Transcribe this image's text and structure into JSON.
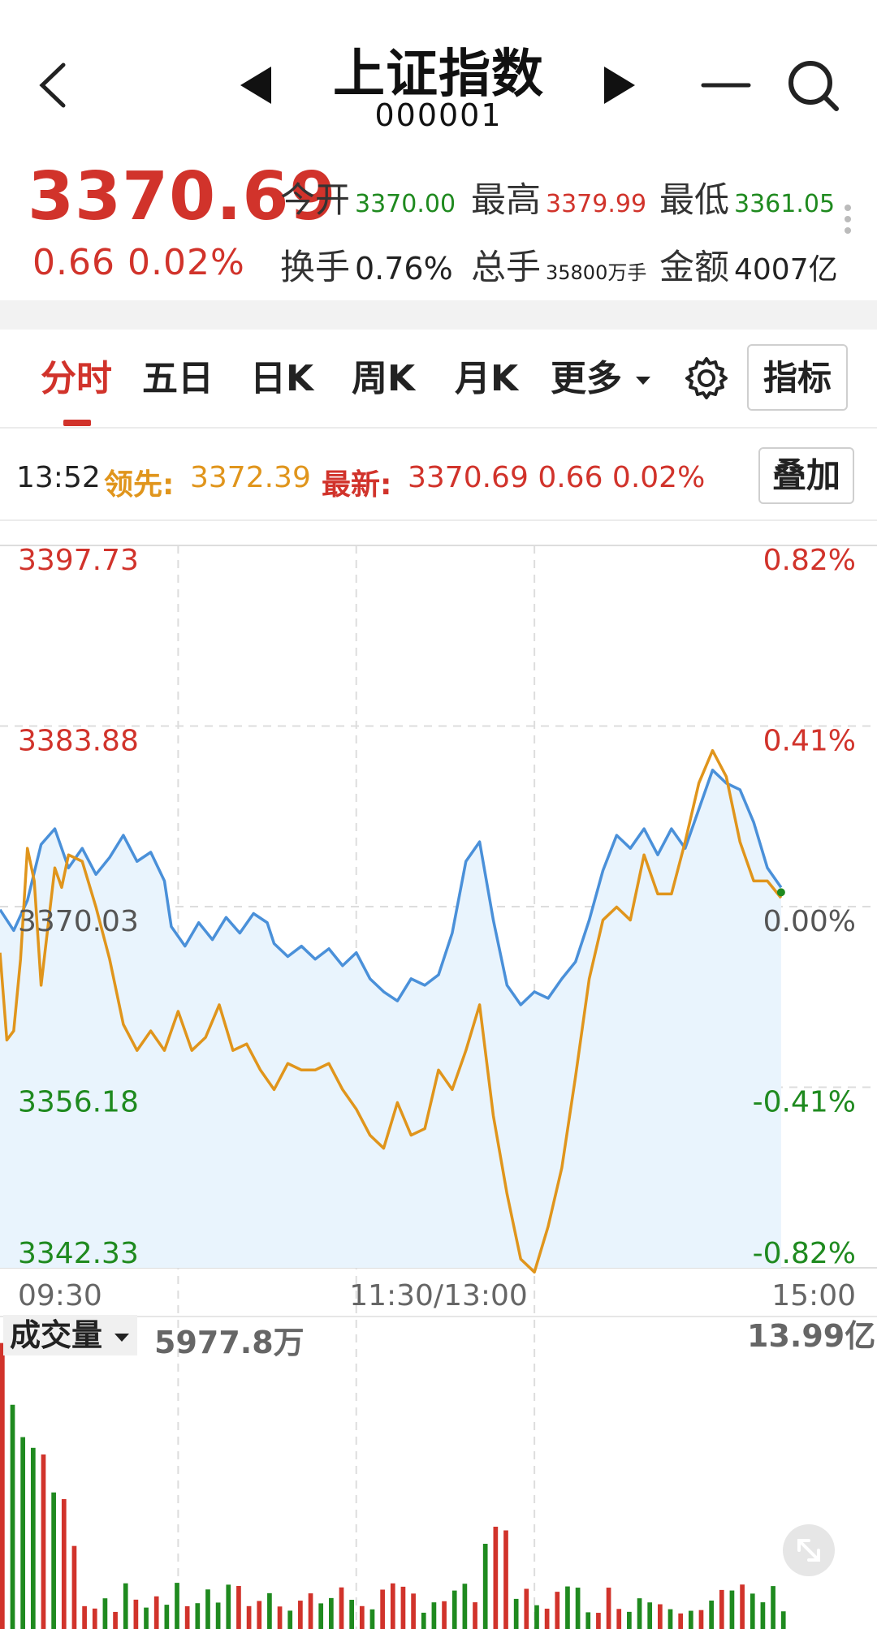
{
  "header": {
    "title": "上证指数",
    "code": "000001"
  },
  "quote": {
    "price": "3370.69",
    "change": "0.66",
    "change_pct": "0.02%",
    "stats": [
      {
        "label": "今开",
        "value": "3370.00",
        "color": "#1f8a1f"
      },
      {
        "label": "最高",
        "value": "3379.99",
        "color": "#d1332b"
      },
      {
        "label": "最低",
        "value": "3361.05",
        "color": "#1f8a1f"
      },
      {
        "label": "换手",
        "value": "0.76%",
        "color": "#222222"
      },
      {
        "label": "总手",
        "value": "35800万手",
        "color": "#222222"
      },
      {
        "label": "金额",
        "value": "4007亿",
        "color": "#222222"
      }
    ]
  },
  "tabs": [
    "分时",
    "五日",
    "日K",
    "周K",
    "月K",
    "更多"
  ],
  "active_tab": "分时",
  "indicator_button": "指标",
  "info": {
    "time": "13:52",
    "lead_label": "领先:",
    "lead_value": "3372.39",
    "last_label": "最新:",
    "last_value": "3370.69 0.66 0.02%",
    "overlay_button": "叠加"
  },
  "colors": {
    "up": "#d1332b",
    "down": "#1f8a1f",
    "price_line": "#4a90d9",
    "lead_line": "#e0951c",
    "area": "#e9f4fd"
  },
  "chart_data": {
    "type": "line",
    "ylim": [
      3342.33,
      3397.73
    ],
    "y_ticks_left": [
      "3397.73",
      "3383.88",
      "3370.03",
      "3356.18",
      "3342.33"
    ],
    "y_ticks_right": [
      "0.82%",
      "0.41%",
      "0.00%",
      "-0.41%",
      "-0.82%"
    ],
    "x_ticks": [
      "09:30",
      "11:30/13:00",
      "15:00"
    ],
    "total_minutes": 240,
    "grid": true,
    "series": [
      {
        "color": "#4a90d9",
        "points": [
          [
            0,
            3369.8
          ],
          [
            4,
            3368.2
          ],
          [
            8,
            3370.5
          ],
          [
            12,
            3374.8
          ],
          [
            16,
            3376.0
          ],
          [
            20,
            3373.0
          ],
          [
            24,
            3374.5
          ],
          [
            28,
            3372.5
          ],
          [
            32,
            3373.8
          ],
          [
            36,
            3375.5
          ],
          [
            40,
            3373.5
          ],
          [
            44,
            3374.2
          ],
          [
            48,
            3372.0
          ],
          [
            50,
            3368.5
          ],
          [
            54,
            3367.0
          ],
          [
            58,
            3368.8
          ],
          [
            62,
            3367.5
          ],
          [
            66,
            3369.2
          ],
          [
            70,
            3368.0
          ],
          [
            74,
            3369.5
          ],
          [
            78,
            3368.8
          ],
          [
            80,
            3367.2
          ],
          [
            84,
            3366.2
          ],
          [
            88,
            3367.0
          ],
          [
            92,
            3366.0
          ],
          [
            96,
            3366.8
          ],
          [
            100,
            3365.5
          ],
          [
            104,
            3366.5
          ],
          [
            108,
            3364.5
          ],
          [
            112,
            3363.5
          ],
          [
            116,
            3362.8
          ],
          [
            120,
            3364.5
          ],
          [
            124,
            3364.0
          ],
          [
            128,
            3364.8
          ],
          [
            132,
            3368.0
          ],
          [
            136,
            3373.5
          ],
          [
            140,
            3375.0
          ],
          [
            144,
            3369.0
          ],
          [
            148,
            3364.0
          ],
          [
            152,
            3362.5
          ],
          [
            156,
            3363.5
          ],
          [
            160,
            3363.0
          ],
          [
            164,
            3364.5
          ],
          [
            168,
            3365.8
          ],
          [
            172,
            3369.0
          ],
          [
            176,
            3372.8
          ],
          [
            180,
            3375.5
          ],
          [
            184,
            3374.5
          ],
          [
            188,
            3376.0
          ],
          [
            192,
            3374.0
          ],
          [
            196,
            3376.0
          ],
          [
            200,
            3374.5
          ],
          [
            204,
            3377.5
          ],
          [
            208,
            3380.5
          ],
          [
            212,
            3379.5
          ],
          [
            216,
            3379.0
          ],
          [
            220,
            3376.5
          ],
          [
            224,
            3373.0
          ],
          [
            228,
            3371.5
          ]
        ]
      },
      {
        "color": "#e0951c",
        "points": [
          [
            0,
            3366.5
          ],
          [
            2,
            3359.8
          ],
          [
            4,
            3360.5
          ],
          [
            6,
            3366.0
          ],
          [
            8,
            3374.5
          ],
          [
            10,
            3372.0
          ],
          [
            12,
            3364.0
          ],
          [
            14,
            3368.5
          ],
          [
            16,
            3373.0
          ],
          [
            18,
            3371.5
          ],
          [
            20,
            3374.0
          ],
          [
            24,
            3373.5
          ],
          [
            28,
            3370.0
          ],
          [
            32,
            3366.0
          ],
          [
            36,
            3361.0
          ],
          [
            40,
            3359.0
          ],
          [
            44,
            3360.5
          ],
          [
            48,
            3359.0
          ],
          [
            52,
            3362.0
          ],
          [
            56,
            3359.0
          ],
          [
            60,
            3360.0
          ],
          [
            64,
            3362.5
          ],
          [
            68,
            3359.0
          ],
          [
            72,
            3359.5
          ],
          [
            76,
            3357.5
          ],
          [
            80,
            3356.0
          ],
          [
            84,
            3358.0
          ],
          [
            88,
            3357.5
          ],
          [
            92,
            3357.5
          ],
          [
            96,
            3358.0
          ],
          [
            100,
            3356.0
          ],
          [
            104,
            3354.5
          ],
          [
            108,
            3352.5
          ],
          [
            112,
            3351.5
          ],
          [
            116,
            3355.0
          ],
          [
            120,
            3352.5
          ],
          [
            124,
            3353.0
          ],
          [
            128,
            3357.5
          ],
          [
            132,
            3356.0
          ],
          [
            136,
            3359.0
          ],
          [
            140,
            3362.5
          ],
          [
            144,
            3354.0
          ],
          [
            148,
            3348.0
          ],
          [
            152,
            3343.0
          ],
          [
            156,
            3342.0
          ],
          [
            160,
            3345.5
          ],
          [
            164,
            3350.0
          ],
          [
            168,
            3357.0
          ],
          [
            172,
            3364.5
          ],
          [
            176,
            3369.0
          ],
          [
            180,
            3370.0
          ],
          [
            184,
            3369.0
          ],
          [
            188,
            3374.0
          ],
          [
            192,
            3371.0
          ],
          [
            196,
            3371.0
          ],
          [
            200,
            3375.0
          ],
          [
            204,
            3379.5
          ],
          [
            208,
            3382.0
          ],
          [
            212,
            3380.0
          ],
          [
            216,
            3375.0
          ],
          [
            220,
            3372.0
          ],
          [
            224,
            3372.0
          ],
          [
            228,
            3370.7
          ]
        ]
      }
    ],
    "volume": {
      "label": "成交量",
      "current": "5977.8万",
      "max_label": "13.99亿",
      "max_value": 1399000000
    }
  }
}
